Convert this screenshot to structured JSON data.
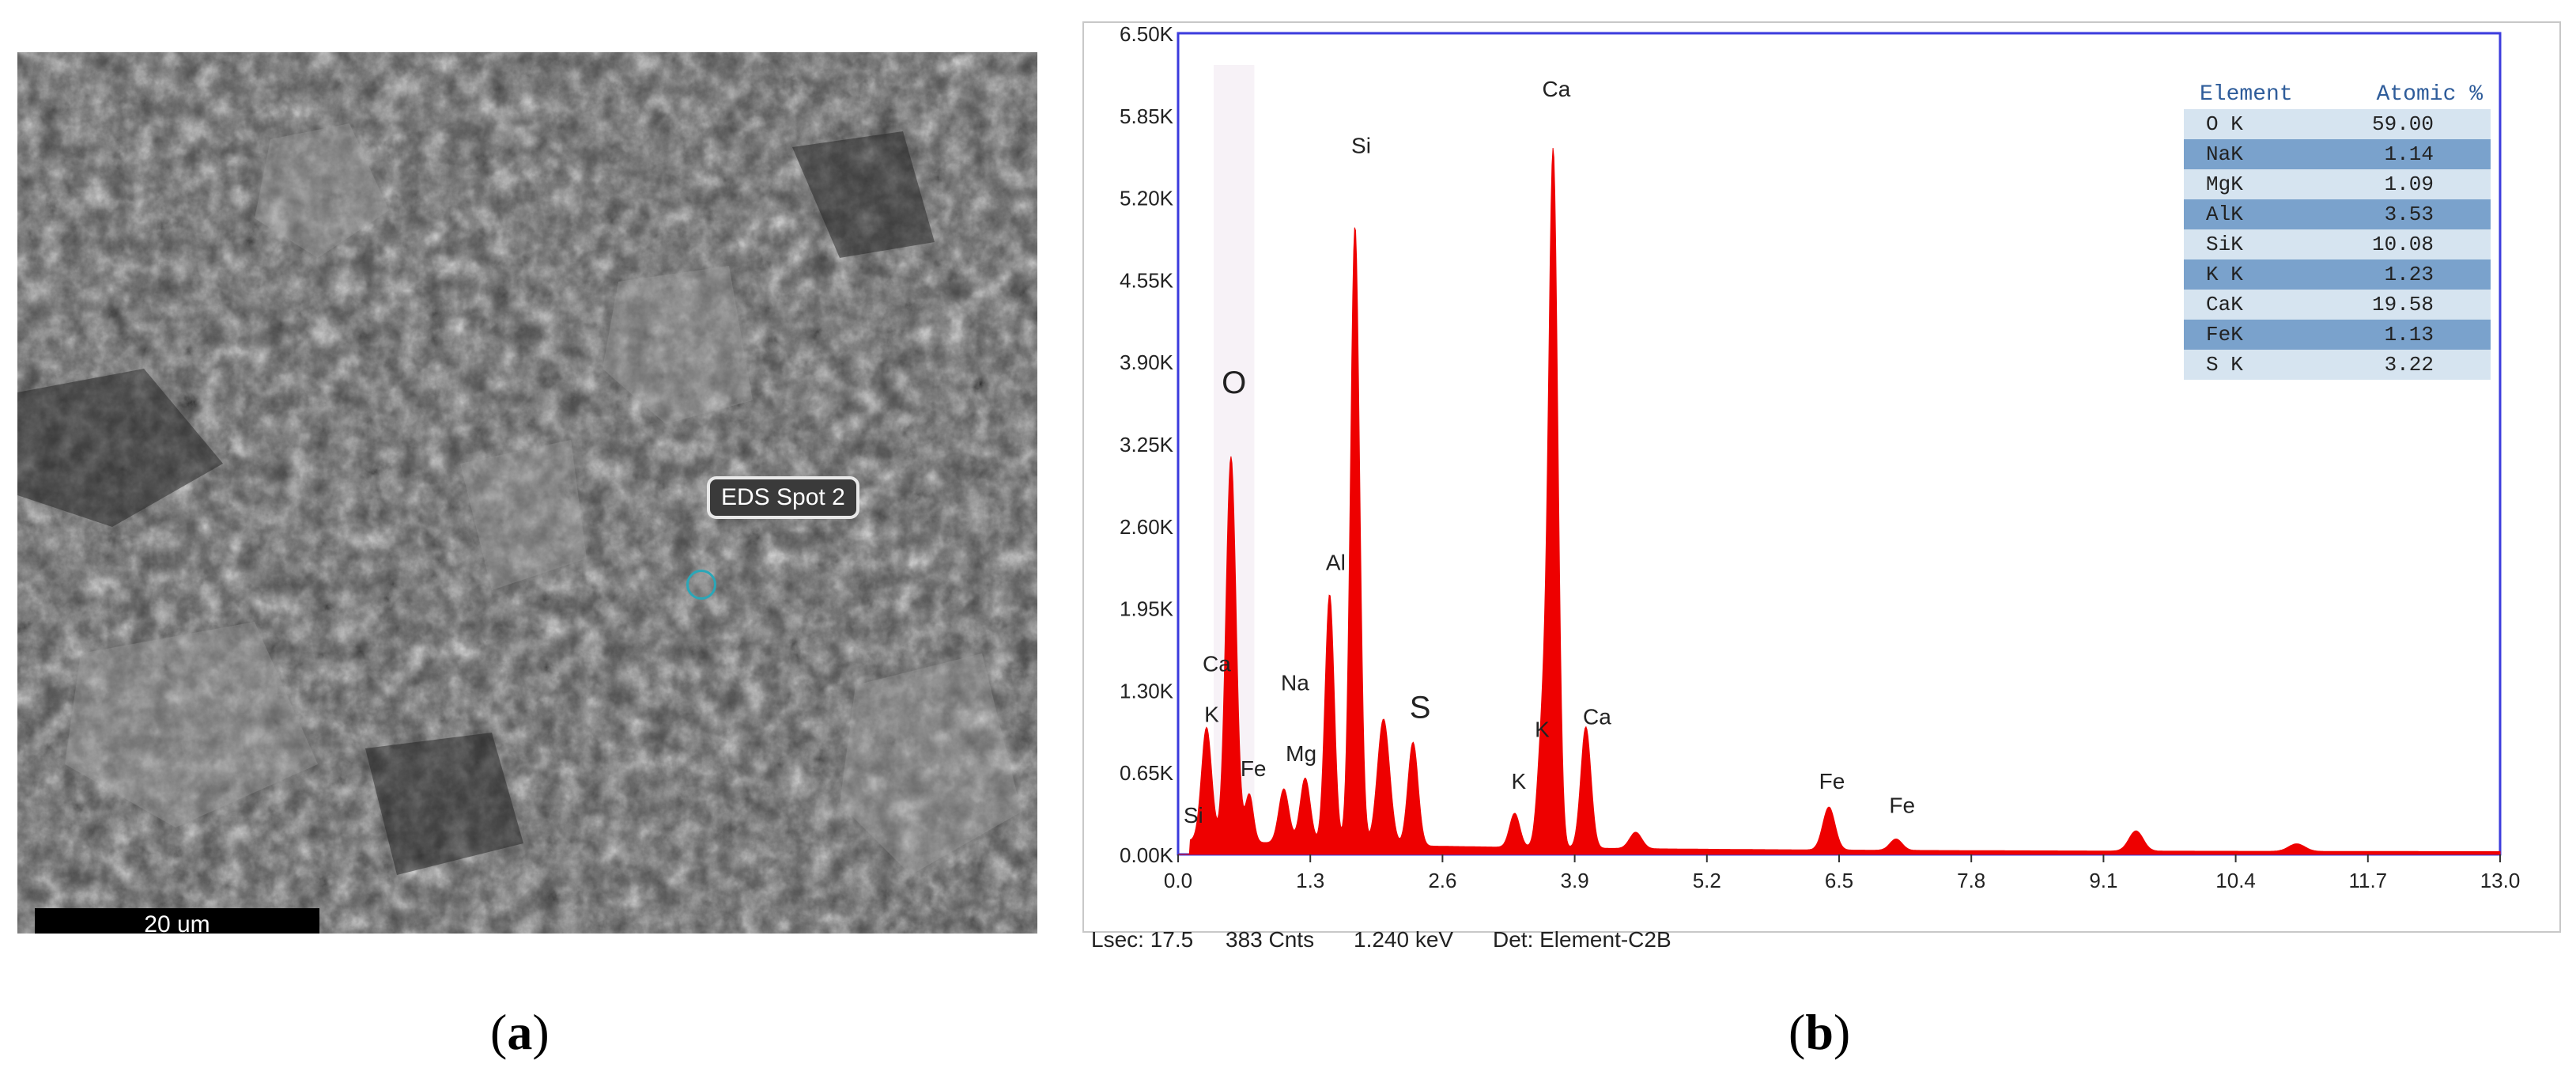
{
  "sem_image": {
    "label": "EDS Spot 2",
    "scale_bar_label": "20 um"
  },
  "captions": {
    "a": "a",
    "b": "b"
  },
  "status_bar": {
    "lsec": "Lsec: 17.5",
    "cnts": "383 Cnts",
    "kev": "1.240 keV",
    "det": "Det: Element-C2B"
  },
  "table": {
    "header": [
      "Element",
      "Atomic %"
    ],
    "rows": [
      [
        "O K",
        "59.00"
      ],
      [
        "NaK",
        "1.14"
      ],
      [
        "MgK",
        "1.09"
      ],
      [
        "AlK",
        "3.53"
      ],
      [
        "SiK",
        "10.08"
      ],
      [
        "K K",
        "1.23"
      ],
      [
        "CaK",
        "19.58"
      ],
      [
        "FeK",
        "1.13"
      ],
      [
        "S K",
        "3.22"
      ]
    ]
  },
  "chart_data": {
    "type": "line",
    "title": "",
    "xlabel": "",
    "ylabel": "",
    "xlim": [
      0.0,
      13.0
    ],
    "ylim": [
      0,
      6500
    ],
    "x_ticks": [
      "0.0",
      "1.3",
      "2.6",
      "3.9",
      "5.2",
      "6.5",
      "7.8",
      "9.1",
      "10.4",
      "11.7",
      "13.0"
    ],
    "y_ticks": [
      "0.00K",
      "0.65K",
      "1.30K",
      "1.95K",
      "2.60K",
      "3.25K",
      "3.90K",
      "4.55K",
      "5.20K",
      "5.85K",
      "6.50K"
    ],
    "fill_color": "#ee0000",
    "peaks": [
      {
        "x": 0.28,
        "y": 900,
        "w": 0.05
      },
      {
        "x": 0.52,
        "y": 3050,
        "w": 0.05
      },
      {
        "x": 0.7,
        "y": 380,
        "w": 0.04
      },
      {
        "x": 1.04,
        "y": 430,
        "w": 0.05
      },
      {
        "x": 1.25,
        "y": 520,
        "w": 0.05
      },
      {
        "x": 1.49,
        "y": 1980,
        "w": 0.045
      },
      {
        "x": 1.74,
        "y": 4900,
        "w": 0.045
      },
      {
        "x": 2.02,
        "y": 1000,
        "w": 0.06
      },
      {
        "x": 2.31,
        "y": 820,
        "w": 0.05
      },
      {
        "x": 3.31,
        "y": 270,
        "w": 0.05
      },
      {
        "x": 3.59,
        "y": 1000,
        "w": 0.05
      },
      {
        "x": 3.69,
        "y": 5400,
        "w": 0.045
      },
      {
        "x": 4.01,
        "y": 960,
        "w": 0.05
      },
      {
        "x": 4.5,
        "y": 130,
        "w": 0.06
      },
      {
        "x": 6.4,
        "y": 340,
        "w": 0.06
      },
      {
        "x": 7.06,
        "y": 90,
        "w": 0.06
      },
      {
        "x": 9.42,
        "y": 160,
        "w": 0.07
      },
      {
        "x": 11.0,
        "y": 60,
        "w": 0.08
      }
    ],
    "annotations": [
      {
        "text": "Si",
        "x": 0.15,
        "y": 250
      },
      {
        "text": "K",
        "x": 0.33,
        "y": 1050
      },
      {
        "text": "Ca",
        "x": 0.38,
        "y": 1450
      },
      {
        "text": "Fe",
        "x": 0.74,
        "y": 620
      },
      {
        "text": "O",
        "x": 0.55,
        "y": 3650
      },
      {
        "text": "Na",
        "x": 1.15,
        "y": 1300
      },
      {
        "text": "Mg",
        "x": 1.21,
        "y": 740
      },
      {
        "text": "Al",
        "x": 1.55,
        "y": 2250
      },
      {
        "text": "Si",
        "x": 1.8,
        "y": 5550
      },
      {
        "text": "S",
        "x": 2.38,
        "y": 1080
      },
      {
        "text": "K",
        "x": 3.35,
        "y": 520
      },
      {
        "text": "K",
        "x": 3.58,
        "y": 930
      },
      {
        "text": "Ca",
        "x": 4.12,
        "y": 1030
      },
      {
        "text": "Ca",
        "x": 3.72,
        "y": 6000
      },
      {
        "text": "Fe",
        "x": 6.43,
        "y": 520
      },
      {
        "text": "Fe",
        "x": 7.12,
        "y": 330
      }
    ]
  }
}
